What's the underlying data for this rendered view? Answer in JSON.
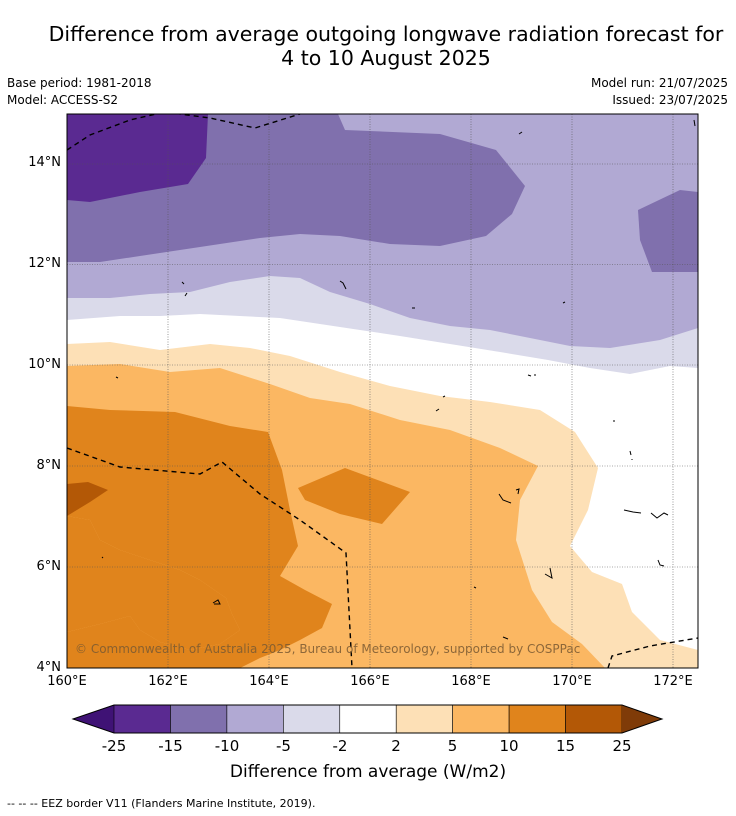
{
  "title_line1": "Difference from average outgoing longwave radiation forecast for",
  "title_line2": "4 to 10 August 2025",
  "meta": {
    "base_period": "Base period: 1981-2018",
    "model": "Model: ACCESS-S2",
    "model_run": "Model run: 21/07/2025",
    "issued": "Issued: 23/07/2025"
  },
  "map": {
    "lat_ticks": [
      "14°N",
      "12°N",
      "10°N",
      "8°N",
      "6°N",
      "4°N"
    ],
    "lon_ticks": [
      "160°E",
      "162°E",
      "164°E",
      "166°E",
      "168°E",
      "170°E",
      "172°E"
    ],
    "copyright": "© Commonwealth of Australia 2025, Bureau of Meteorology, supported by COSPPac"
  },
  "colorbar": {
    "labels": [
      "-25",
      "-15",
      "-10",
      "-5",
      "-2",
      "2",
      "5",
      "10",
      "15",
      "25"
    ],
    "colors": [
      "#3f1275",
      "#5a2a91",
      "#8070ad",
      "#b1a9d3",
      "#dadaea",
      "#ffffff",
      "#fde0b6",
      "#fbb762",
      "#e0841c",
      "#b35806",
      "#7f3b08"
    ],
    "title": "Difference from average (W/m2)"
  },
  "footnote": "--  --  -- EEZ border V11 (Flanders Marine Institute, 2019)."
}
